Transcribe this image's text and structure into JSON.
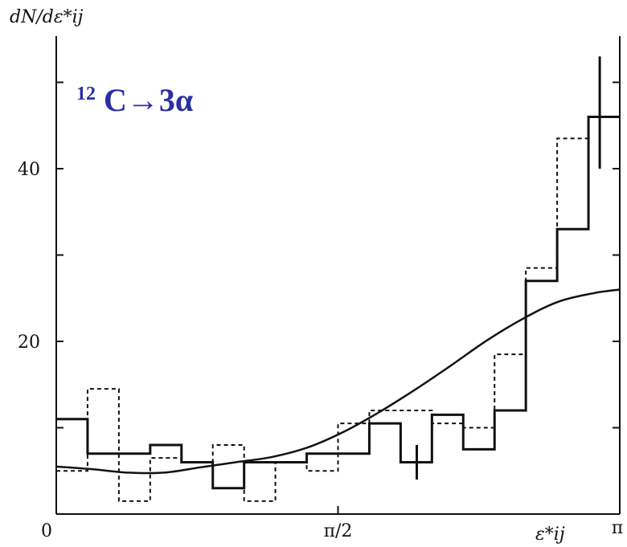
{
  "chart_data": {
    "type": "histogram",
    "title": "",
    "annotation": {
      "mass": "12",
      "text": "C→3α"
    },
    "ylabel": "dN/dε*ij",
    "xlabel": "ε*ij",
    "x_tick_labels": [
      "0",
      "π/2",
      "π"
    ],
    "y_tick_labels": [
      "20",
      "40"
    ],
    "xlim": [
      0,
      3.1416
    ],
    "ylim": [
      0,
      55
    ],
    "bin_edges": [
      0,
      0.1745,
      0.3491,
      0.5236,
      0.6981,
      0.8727,
      1.0472,
      1.2217,
      1.3963,
      1.5708,
      1.7453,
      1.9199,
      2.0944,
      2.2689,
      2.4435,
      2.618,
      2.7925,
      2.9671,
      3.1416
    ],
    "series": [
      {
        "style": "solid",
        "values": [
          11,
          7,
          7,
          8,
          6,
          3,
          6,
          6,
          7,
          7,
          10.5,
          6,
          11.5,
          7.5,
          12,
          27,
          33,
          46
        ],
        "error_bars": [
          {
            "x": 2.01,
            "y": 6,
            "low": 4,
            "high": 8
          },
          {
            "x": 3.03,
            "y": 46,
            "low": 40,
            "high": 53
          }
        ]
      },
      {
        "style": "dashed",
        "values": [
          5,
          14.5,
          1.5,
          6.5,
          6,
          8,
          1.5,
          6,
          5,
          10.5,
          12,
          12,
          10.5,
          10,
          18.5,
          28.5,
          43.5,
          46
        ]
      },
      {
        "style": "smooth-curve",
        "x": [
          0,
          0.2,
          0.4,
          0.6,
          0.8,
          1.0,
          1.2,
          1.4,
          1.6,
          1.8,
          2.0,
          2.2,
          2.4,
          2.6,
          2.8,
          3.0,
          3.1416
        ],
        "values": [
          5.5,
          5.2,
          4.8,
          4.8,
          5.4,
          6.0,
          6.6,
          7.7,
          9.5,
          11.8,
          14.4,
          17.2,
          20.1,
          22.6,
          24.6,
          25.6,
          26
        ]
      }
    ]
  }
}
